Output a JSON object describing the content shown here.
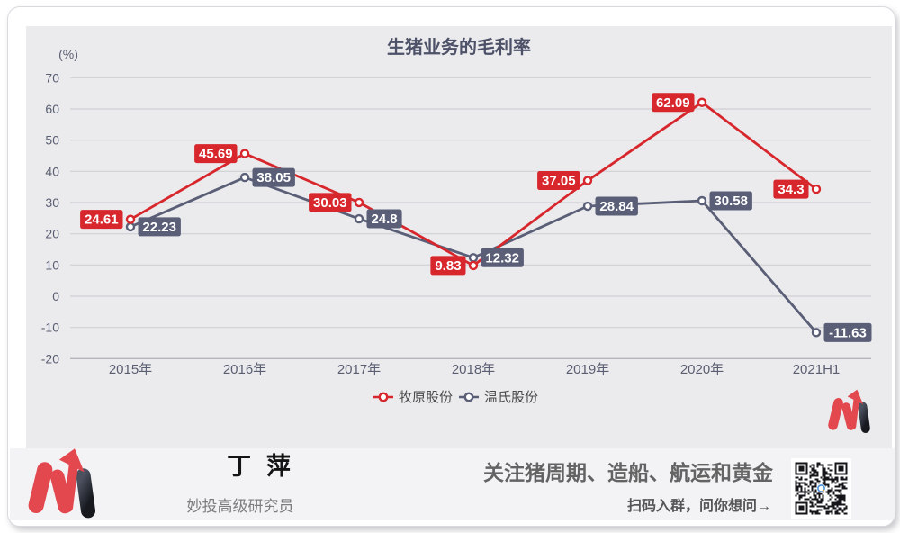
{
  "chart_data": {
    "type": "line",
    "title": "生猪业务的毛利率",
    "unit_label": "(%)",
    "categories": [
      "2015年",
      "2016年",
      "2017年",
      "2018年",
      "2019年",
      "2020年",
      "2021H1"
    ],
    "series": [
      {
        "name": "牧原股份",
        "color": "#d7262c",
        "label_side": "left",
        "values": [
          24.61,
          45.69,
          30.03,
          9.83,
          37.05,
          62.09,
          34.3
        ]
      },
      {
        "name": "温氏股份",
        "color": "#5a5f77",
        "label_side": "right",
        "values": [
          22.23,
          38.05,
          24.8,
          12.32,
          28.84,
          30.58,
          -11.63
        ]
      }
    ],
    "ylim": [
      -20,
      70
    ],
    "ytick_step": 10,
    "grid": "horizontal",
    "legend_position": "bottom"
  },
  "footer": {
    "author": "丁 萍",
    "role": "妙投高级研究员",
    "promo": "关注猪周期、造船、航运和黄金",
    "scan": "扫码入群，问你想问→"
  },
  "branding": {
    "logo_red": "#e2484e",
    "logo_dark_top": "#4c5160",
    "logo_dark_bottom": "#17191f"
  }
}
